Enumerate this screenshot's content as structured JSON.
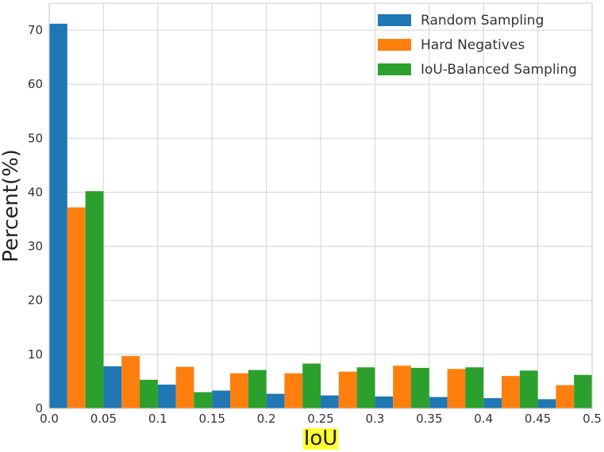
{
  "chart_data": {
    "type": "bar",
    "title": "",
    "xlabel": "IoU",
    "ylabel": "Percent(%)",
    "x_ticks": [
      "0.0",
      "0.05",
      "0.1",
      "0.15",
      "0.2",
      "0.25",
      "0.3",
      "0.35",
      "0.4",
      "0.45",
      "0.5"
    ],
    "y_ticks": [
      "0",
      "10",
      "20",
      "30",
      "40",
      "50",
      "60",
      "70"
    ],
    "xlim": [
      0,
      0.5
    ],
    "ylim": [
      0,
      75
    ],
    "bin_width": 0.05,
    "bin_starts": [
      0.0,
      0.05,
      0.1,
      0.15,
      0.2,
      0.25,
      0.3,
      0.35,
      0.4,
      0.45
    ],
    "grid": true,
    "legend_position": "top-right",
    "xlabel_highlight": "#ffff33",
    "series": [
      {
        "name": "Random Sampling",
        "color": "#1f77b4",
        "values": [
          71.2,
          7.8,
          4.4,
          3.3,
          2.7,
          2.4,
          2.2,
          2.1,
          1.9,
          1.7
        ]
      },
      {
        "name": "Hard Negatives",
        "color": "#ff7f0e",
        "values": [
          37.2,
          9.7,
          7.7,
          6.5,
          6.5,
          6.8,
          7.9,
          7.3,
          6.0,
          4.3
        ]
      },
      {
        "name": "IoU-Balanced Sampling",
        "color": "#2ca02c",
        "values": [
          40.2,
          5.3,
          3.0,
          7.1,
          8.3,
          7.6,
          7.5,
          7.6,
          7.0,
          6.2
        ]
      }
    ]
  }
}
